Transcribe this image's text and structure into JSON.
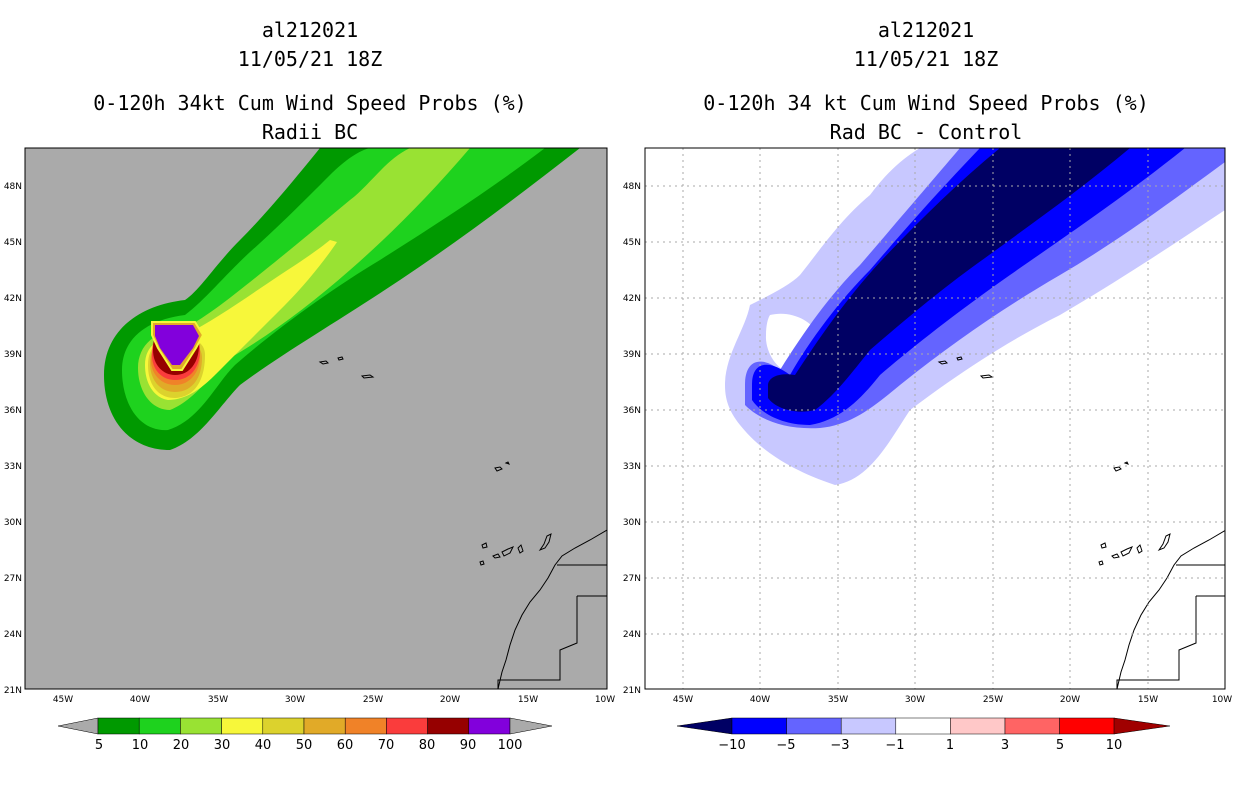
{
  "panels": [
    {
      "storm_id": "al212021",
      "datetime": "11/05/21 18Z",
      "title": "0-120h 34kt Cum Wind Speed Probs (%)",
      "subtitle": "Radii BC",
      "legend": {
        "labels": [
          "5",
          "10",
          "20",
          "30",
          "40",
          "50",
          "60",
          "70",
          "80",
          "90",
          "100"
        ],
        "colors": [
          "#009900",
          "#1ed21e",
          "#99e233",
          "#f7f73a",
          "#dcd22d",
          "#e1aa28",
          "#f08228",
          "#fa3c3c",
          "#960000",
          "#8200dc"
        ],
        "extend_color": "#aaaaaa"
      }
    },
    {
      "storm_id": "al212021",
      "datetime": "11/05/21 18Z",
      "title": "0-120h 34 kt Cum Wind Speed Probs (%)",
      "subtitle": "Rad BC - Control",
      "legend": {
        "labels": [
          "−10",
          "−5",
          "−3",
          "−1",
          "1",
          "3",
          "5",
          "10"
        ],
        "colors": [
          "#000064",
          "#0000ff",
          "#6464ff",
          "#c8c8ff",
          "#ffffff",
          "#ffc8c8",
          "#ff6464",
          "#ff0000",
          "#a00000"
        ],
        "extend_low": "#000064",
        "extend_high": "#a00000"
      }
    }
  ],
  "axes": {
    "lat_labels": [
      "48N",
      "45N",
      "42N",
      "39N",
      "36N",
      "33N",
      "30N",
      "27N",
      "24N",
      "21N"
    ],
    "lon_labels": [
      "45W",
      "40W",
      "35W",
      "30W",
      "25W",
      "20W",
      "15W",
      "10W"
    ]
  },
  "colors": {
    "map_background_left": "#aaaaaa",
    "map_background_right": "#ffffff",
    "land_outline": "#000000"
  }
}
